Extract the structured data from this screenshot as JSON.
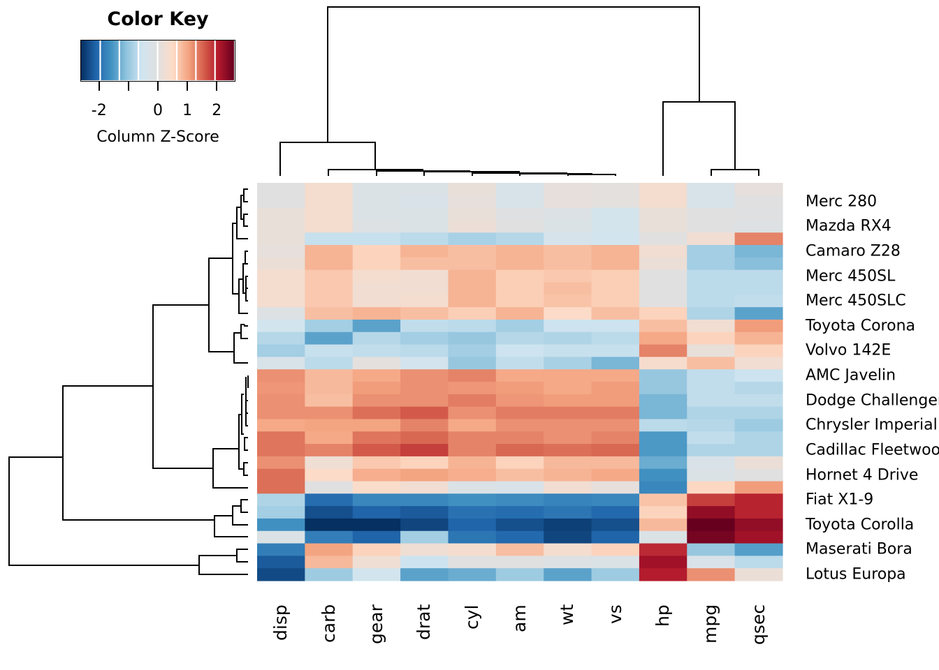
{
  "chart_data": {
    "type": "heatmap",
    "title": "",
    "xlabel": "",
    "ylabel": "",
    "color_key": {
      "title": "Color Key",
      "xlabel": "Column Z-Score",
      "ticks": [
        -2,
        -1,
        0,
        1,
        2
      ],
      "tick_labels": [
        "-2",
        "",
        "0",
        "1",
        "2"
      ],
      "range": [
        -2.6,
        2.6
      ],
      "palette": [
        "#053061",
        "#2166ac",
        "#4393c3",
        "#92c5de",
        "#d1e5f0",
        "#e0e0e0",
        "#fddbc7",
        "#f4a582",
        "#d6604d",
        "#b2182b",
        "#67001f"
      ]
    },
    "columns": [
      "disp",
      "carb",
      "gear",
      "drat",
      "cyl",
      "am",
      "wt",
      "vs",
      "hp",
      "mpg",
      "qsec"
    ],
    "row_labels": [
      "",
      "Merc 280",
      "",
      "Mazda RX4",
      "",
      "Camaro Z28",
      "",
      "Merc 450SL",
      "",
      "Merc 450SLC",
      "",
      "Toyota Corona",
      "",
      "Volvo 142E",
      "",
      "AMC Javelin",
      "",
      "Dodge Challenger",
      "",
      "Chrysler Imperial",
      "",
      "Cadillac Fleetwood",
      "",
      "Hornet 4 Drive",
      "",
      "Fiat X1-9",
      "",
      "Toyota Corolla",
      "",
      "Maserati Bora",
      "",
      "Lotus Europa"
    ],
    "values": [
      [
        0,
        0.35,
        -0.2,
        -0.2,
        0.15,
        -0.3,
        0.1,
        0.05,
        0.35,
        -0.3,
        0.1
      ],
      [
        0,
        0.35,
        -0.2,
        -0.25,
        0.1,
        -0.3,
        0.1,
        0.05,
        0.35,
        -0.3,
        0
      ],
      [
        0.15,
        0.35,
        -0.2,
        -0.2,
        0.15,
        -0.05,
        -0.15,
        -0.4,
        0.15,
        0,
        -0.05
      ],
      [
        0.15,
        0.35,
        -0.1,
        -0.2,
        0.2,
        0,
        -0.2,
        -0.4,
        0.15,
        0,
        -0.1
      ],
      [
        0.15,
        -0.6,
        -0.6,
        -0.7,
        -0.85,
        -0.75,
        -0.35,
        -0.5,
        0,
        0.3,
        1.3
      ],
      [
        0.1,
        0.9,
        0.6,
        0.9,
        0.8,
        0.9,
        0.8,
        0.9,
        0.3,
        -0.9,
        -1.2
      ],
      [
        0.2,
        0.9,
        0.6,
        0.8,
        0.8,
        0.9,
        0.8,
        0.9,
        0.2,
        -0.9,
        -1.1
      ],
      [
        0.35,
        0.7,
        0.35,
        0.3,
        0.9,
        0.65,
        0.7,
        0.65,
        0,
        -0.7,
        -0.7
      ],
      [
        0.35,
        0.7,
        0.3,
        0.3,
        0.9,
        0.65,
        0.8,
        0.65,
        0,
        -0.7,
        -0.7
      ],
      [
        0.35,
        0.7,
        0.3,
        0.35,
        0.9,
        0.65,
        0.75,
        0.65,
        0,
        -0.7,
        -0.65
      ],
      [
        -0.1,
        0.8,
        0.9,
        0.8,
        0.65,
        0.9,
        0.5,
        0.8,
        0.6,
        -0.8,
        -1.4
      ],
      [
        -0.5,
        -0.9,
        -1.4,
        -0.65,
        -0.7,
        -0.9,
        -0.55,
        -0.55,
        0.8,
        0.3,
        1.1
      ],
      [
        -0.75,
        -1.4,
        -0.75,
        -0.9,
        -1.0,
        -0.75,
        -0.8,
        -0.7,
        1.0,
        0.6,
        0.9
      ],
      [
        -0.9,
        -0.6,
        -0.65,
        -0.7,
        -0.9,
        -0.55,
        -0.6,
        -0.6,
        1.3,
        0.15,
        0.6
      ],
      [
        -0.3,
        -0.7,
        0.05,
        -0.45,
        -1.0,
        -0.65,
        -0.85,
        -1.2,
        0.4,
        0.8,
        0.3
      ],
      [
        1.2,
        0.85,
        1.0,
        1.2,
        1.3,
        1.0,
        1.0,
        1.0,
        -1.0,
        -0.65,
        -0.55
      ],
      [
        1.15,
        0.85,
        1.1,
        1.2,
        1.15,
        1.1,
        1.0,
        1.1,
        -1.0,
        -0.65,
        -0.75
      ],
      [
        1.2,
        0.8,
        1.2,
        1.2,
        1.35,
        1.15,
        1.1,
        1.1,
        -1.2,
        -0.65,
        -0.65
      ],
      [
        1.2,
        1.2,
        1.45,
        1.6,
        1.2,
        1.35,
        1.35,
        1.35,
        -1.2,
        -0.8,
        -0.8
      ],
      [
        1.0,
        1.05,
        1.05,
        1.3,
        1.0,
        1.2,
        1.2,
        1.2,
        -0.7,
        -0.75,
        -0.95
      ],
      [
        1.4,
        1.0,
        1.4,
        1.5,
        1.3,
        1.3,
        1.2,
        1.3,
        -1.5,
        -0.65,
        -0.8
      ],
      [
        1.4,
        1.3,
        1.6,
        1.8,
        1.3,
        1.5,
        1.45,
        1.5,
        -1.5,
        -0.8,
        -0.8
      ],
      [
        1.2,
        0.25,
        0.7,
        0.6,
        0.9,
        0.6,
        0.85,
        0.85,
        -1.3,
        -0.25,
        0.2
      ],
      [
        1.45,
        0.5,
        0.95,
        1.05,
        0.95,
        0.8,
        0.9,
        1.0,
        -1.6,
        -0.2,
        0
      ],
      [
        1.45,
        0,
        0.45,
        0.3,
        -0.2,
        -0.25,
        0.3,
        0.1,
        -1.7,
        0.55,
        1.1
      ],
      [
        -0.8,
        -2.0,
        -1.7,
        -1.7,
        -1.6,
        -1.65,
        -1.75,
        -1.7,
        0.75,
        1.8,
        2.0
      ],
      [
        -0.9,
        -2.3,
        -2.1,
        -2.2,
        -1.95,
        -2.0,
        -1.9,
        -2.05,
        0.6,
        2.3,
        2.0
      ],
      [
        -1.6,
        -2.7,
        -2.6,
        -2.4,
        -2.1,
        -2.3,
        -2.45,
        -2.3,
        0.85,
        2.7,
        2.3
      ],
      [
        -0.2,
        -1.8,
        -2.1,
        -0.9,
        -1.9,
        -2.05,
        -2.4,
        -2.1,
        -0.2,
        2.5,
        2.2
      ],
      [
        -1.8,
        1.05,
        0.6,
        0.25,
        0.35,
        0.8,
        0.35,
        0.6,
        1.95,
        -1.0,
        -1.45
      ],
      [
        -2.2,
        0.85,
        0.25,
        -0.55,
        0,
        0,
        -0.1,
        -0.2,
        2.2,
        -0.25,
        -0.7
      ],
      [
        -2.35,
        -0.95,
        -0.5,
        -1.4,
        -1.3,
        -0.95,
        -1.4,
        -0.95,
        2.05,
        1.2,
        0.2
      ]
    ]
  }
}
